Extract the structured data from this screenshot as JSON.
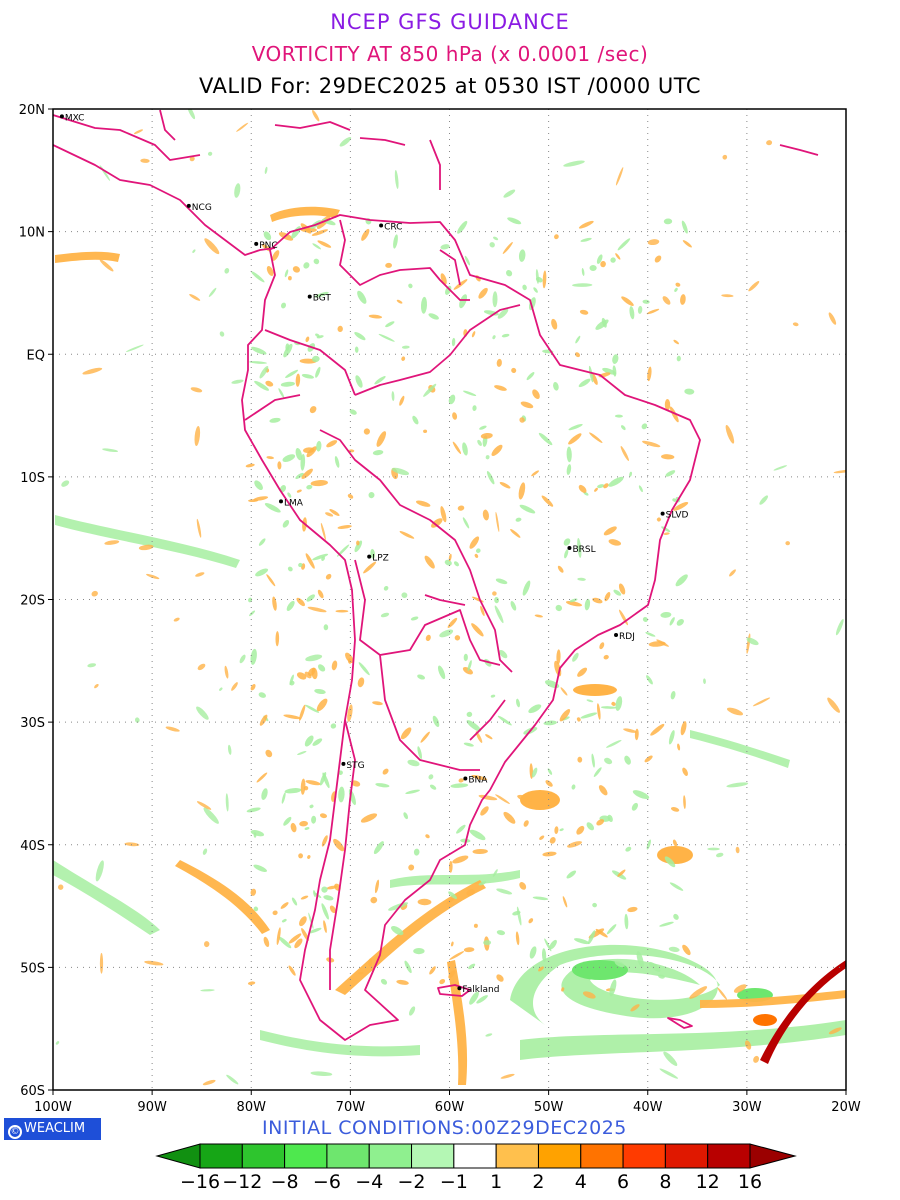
{
  "title": {
    "line1": "NCEP GFS GUIDANCE",
    "line2": "VORTICITY AT 850 hPa (x 0.0001 /sec)",
    "line3": "VALID For: 29DEC2025 at 0530 IST /0000 UTC",
    "line1_color": "#8a1be3",
    "line2_color": "#e0157a"
  },
  "axes": {
    "lat_labels": [
      "20N",
      "10N",
      "EQ",
      "10S",
      "20S",
      "30S",
      "40S",
      "50S",
      "60S"
    ],
    "lon_labels": [
      "100W",
      "90W",
      "80W",
      "70W",
      "60W",
      "50W",
      "40W",
      "30W",
      "20W"
    ],
    "lat_range": [
      -60,
      20
    ],
    "lon_range": [
      -100,
      -20
    ],
    "grid": "dotted"
  },
  "cities": [
    {
      "label": "MXC",
      "lon": -99.1,
      "lat": 19.4
    },
    {
      "label": "NCG",
      "lon": -86.3,
      "lat": 12.1
    },
    {
      "label": "CRC",
      "lon": -66.9,
      "lat": 10.5
    },
    {
      "label": "PNC",
      "lon": -79.5,
      "lat": 9.0
    },
    {
      "label": "BGT",
      "lon": -74.1,
      "lat": 4.7
    },
    {
      "label": "LMA",
      "lon": -77.0,
      "lat": -12.0
    },
    {
      "label": "LPZ",
      "lon": -68.1,
      "lat": -16.5
    },
    {
      "label": "SLVD",
      "lon": -38.5,
      "lat": -13.0
    },
    {
      "label": "BRSL",
      "lon": -47.9,
      "lat": -15.8
    },
    {
      "label": "RDJ",
      "lon": -43.2,
      "lat": -22.9
    },
    {
      "label": "STG",
      "lon": -70.7,
      "lat": -33.4
    },
    {
      "label": "BNA",
      "lon": -58.4,
      "lat": -34.6
    },
    {
      "label": "Falkland",
      "lon": -59.0,
      "lat": -51.7
    }
  ],
  "colorbar": {
    "labels": [
      "-16",
      "-12",
      "-8",
      "-6",
      "-4",
      "-2",
      "-1",
      "1",
      "2",
      "4",
      "6",
      "8",
      "12",
      "16"
    ],
    "colors": [
      "#16a616",
      "#2ec52e",
      "#4ee84e",
      "#6ee66e",
      "#8ff08f",
      "#b4f7b4",
      "#ffffff",
      "#ffc04d",
      "#ffa200",
      "#ff7300",
      "#ff3b00",
      "#e01800",
      "#b80000"
    ],
    "low_color": "#119011",
    "high_color": "#9b0000"
  },
  "footer": {
    "brand": "WEACLIM",
    "initial_conditions": "INITIAL CONDITIONS:00Z29DEC2025"
  },
  "boundary_color": "#e0157a",
  "field_colors": {
    "positive": "#ffb347",
    "negative": "#a6eea0"
  }
}
